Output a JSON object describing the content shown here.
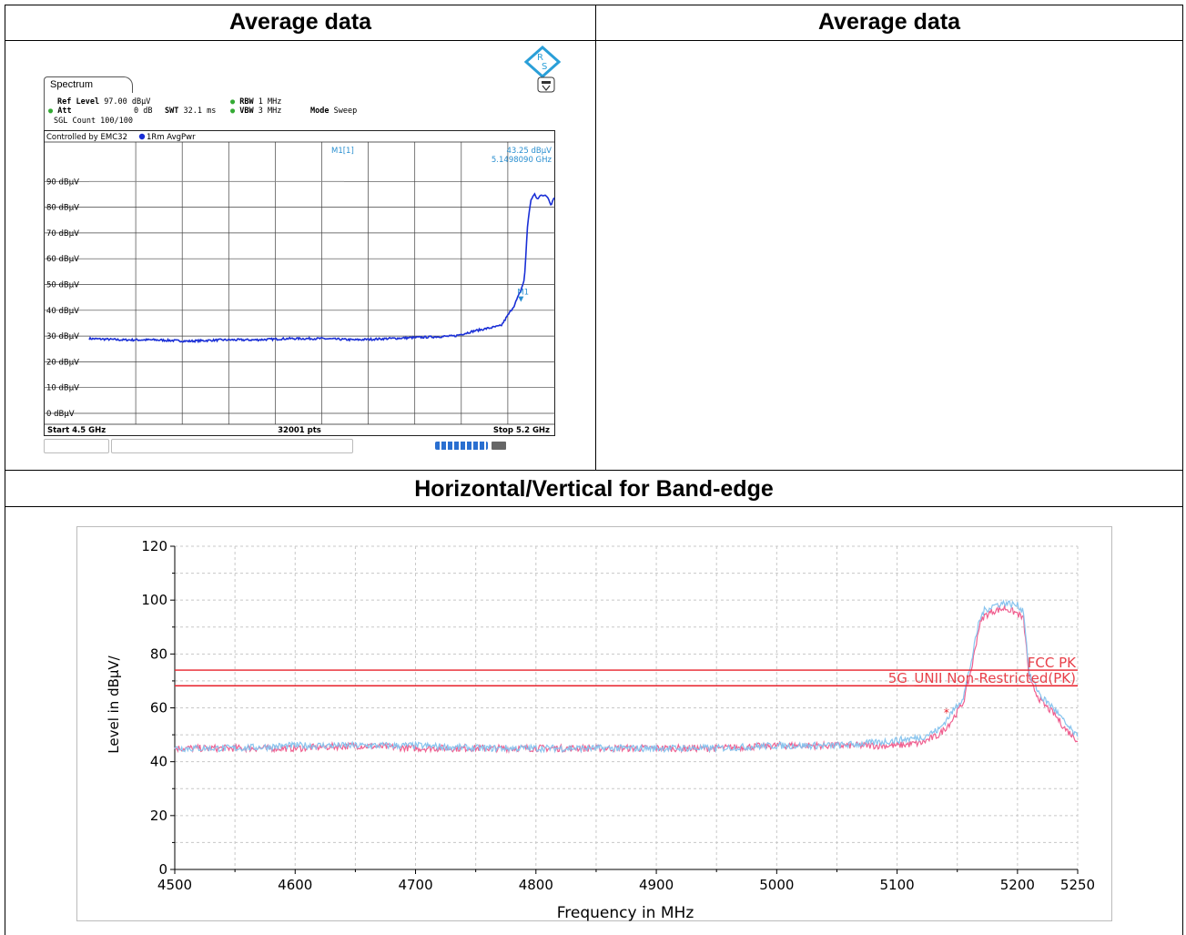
{
  "headers": {
    "left": "Average data",
    "right": "Average data",
    "bottom": "Horizontal/Vertical for Band-edge"
  },
  "analyzer": {
    "tab": "Spectrum",
    "ref_level_label": "Ref Level",
    "ref_level_value": "97.00 dBµV",
    "att_label": "Att",
    "att_value": "0 dB",
    "swt_label": "SWT",
    "swt_value": "32.1 ms",
    "rbw_label": "RBW",
    "rbw_value": "1 MHz",
    "vbw_label": "VBW",
    "vbw_value": "3 MHz",
    "mode_label": "Mode",
    "mode_value": "Sweep",
    "sgl_count": "SGL Count 100/100",
    "controlled_by": "Controlled by EMC32",
    "trace_label": "1Rm AvgPwr",
    "marker_label": "M1[1]",
    "marker_level": "43.25 dBµV",
    "marker_freq": "5.1498090 GHz",
    "marker_tag": "M1",
    "y_ticks": [
      "90 dBµV",
      "80 dBµV",
      "70 dBµV",
      "60 dBµV",
      "50 dBµV",
      "40 dBµV",
      "30 dBµV",
      "20 dBµV",
      "10 dBµV",
      "0 dBµV"
    ],
    "start": "Start 4.5 GHz",
    "points": "32001 pts",
    "stop": "Stop 5.2 GHz",
    "trace_color": "#1a2fd6",
    "marker_color": "#2a8fd0",
    "logo_color": "#2a9fd8"
  },
  "chart_data": [
    {
      "type": "line",
      "title": "",
      "xlabel": "",
      "ylabel": "",
      "x_unit": "GHz",
      "xlim": [
        4.5,
        5.2
      ],
      "ylim": [
        0,
        100
      ],
      "series": [
        {
          "x": [
            4.5,
            4.55,
            4.6,
            4.65,
            4.7,
            4.75,
            4.8,
            4.85,
            4.9,
            4.95,
            5.0,
            5.05,
            5.08,
            5.1,
            5.12,
            5.13,
            5.14,
            5.145,
            5.15,
            5.155,
            5.16,
            5.165,
            5.17,
            5.175,
            5.18,
            5.19,
            5.195,
            5.2
          ],
          "values": [
            29,
            28.5,
            28.5,
            28,
            28.5,
            28.5,
            29,
            29,
            28.5,
            29,
            29.5,
            30,
            32,
            33,
            34,
            38,
            42,
            45,
            48,
            52,
            74,
            83,
            85,
            83,
            85,
            84,
            81,
            84
          ]
        }
      ]
    },
    {
      "type": "line",
      "title": "",
      "xlabel": "Frequency in MHz",
      "ylabel": "Level in dBµV/",
      "xlim": [
        4500,
        5250
      ],
      "ylim": [
        0,
        120
      ],
      "x_ticks": [
        4500,
        4600,
        4700,
        4800,
        4900,
        5000,
        5100,
        5200,
        5250
      ],
      "y_ticks": [
        0,
        20,
        40,
        60,
        80,
        100,
        120
      ],
      "grid": true,
      "limit_lines": [
        {
          "name": "FCC PK",
          "value": 74,
          "color": "#e8202a"
        },
        {
          "name": "5G_UNII Non-Restricted(PK)",
          "value": 68.2,
          "color": "#e8202a"
        }
      ],
      "star_marker": {
        "x": 5141,
        "y": 58.5
      },
      "series": [
        {
          "color": "#f06090",
          "x": [
            4500,
            4550,
            4600,
            4650,
            4700,
            4750,
            4800,
            4850,
            4900,
            4950,
            5000,
            5050,
            5080,
            5100,
            5120,
            5135,
            5145,
            5155,
            5162,
            5168,
            5172,
            5180,
            5190,
            5200,
            5205,
            5210,
            5220,
            5230,
            5240,
            5250
          ],
          "values": [
            45,
            45,
            45,
            46,
            45,
            45,
            45,
            45,
            45,
            45,
            46,
            46,
            46,
            46,
            47,
            50,
            55,
            62,
            75,
            90,
            94,
            96,
            97,
            95,
            93,
            70,
            62,
            58,
            52,
            48
          ]
        },
        {
          "color": "#88c4ee",
          "x": [
            4500,
            4550,
            4600,
            4650,
            4700,
            4750,
            4800,
            4850,
            4900,
            4950,
            5000,
            5050,
            5080,
            5100,
            5120,
            5135,
            5145,
            5155,
            5162,
            5168,
            5172,
            5180,
            5190,
            5200,
            5205,
            5210,
            5220,
            5230,
            5240,
            5250
          ],
          "values": [
            45,
            45,
            46,
            46,
            46,
            45,
            45,
            45,
            45,
            45,
            46,
            46,
            47,
            48,
            49,
            52,
            58,
            64,
            78,
            92,
            96,
            98,
            99,
            98,
            96,
            72,
            64,
            60,
            54,
            49
          ]
        }
      ]
    }
  ]
}
